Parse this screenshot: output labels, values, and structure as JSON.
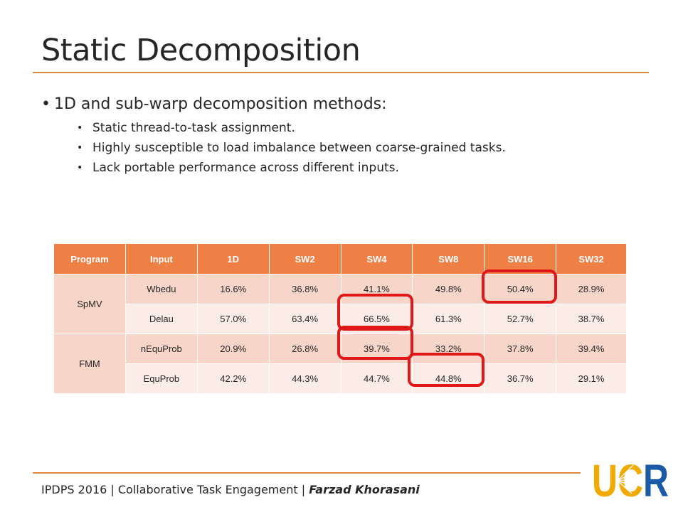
{
  "slide": {
    "title": "Static Decomposition",
    "bullet": "1D and sub-warp decomposition methods:",
    "subbullets": [
      "Static thread-to-task assignment.",
      "Highly susceptible to load imbalance between coarse-grained tasks.",
      "Lack portable performance across different inputs."
    ]
  },
  "table": {
    "headers": [
      "Program",
      "Input",
      "1D",
      "SW2",
      "SW4",
      "SW8",
      "SW16",
      "SW32"
    ],
    "rows": [
      {
        "program": "SpMV",
        "input": "Wbedu",
        "values": [
          "16.6%",
          "36.8%",
          "41.1%",
          "49.8%",
          "50.4%",
          "28.9%"
        ]
      },
      {
        "program": "",
        "input": "Delau",
        "values": [
          "57.0%",
          "63.4%",
          "66.5%",
          "61.3%",
          "52.7%",
          "38.7%"
        ]
      },
      {
        "program": "FMM",
        "input": "nEquProb",
        "values": [
          "20.9%",
          "26.8%",
          "39.7%",
          "33.2%",
          "37.8%",
          "39.4%"
        ]
      },
      {
        "program": "",
        "input": "EquProb",
        "values": [
          "42.2%",
          "44.3%",
          "44.7%",
          "44.8%",
          "36.7%",
          "29.1%"
        ]
      }
    ],
    "highlighted": [
      "Wbedu SW16",
      "Delau SW4",
      "nEquProb SW4",
      "EquProb SW8"
    ],
    "highlight_color": "#e01818",
    "header_color": "#ee8046"
  },
  "footer": {
    "text": "IPDPS 2016 | Collaborative Task Engagement | ",
    "author": "Farzad Khorasani"
  },
  "logo": {
    "text": "UCR",
    "colors": {
      "gold": "#f1ab00",
      "blue": "#1a5aa6"
    }
  }
}
